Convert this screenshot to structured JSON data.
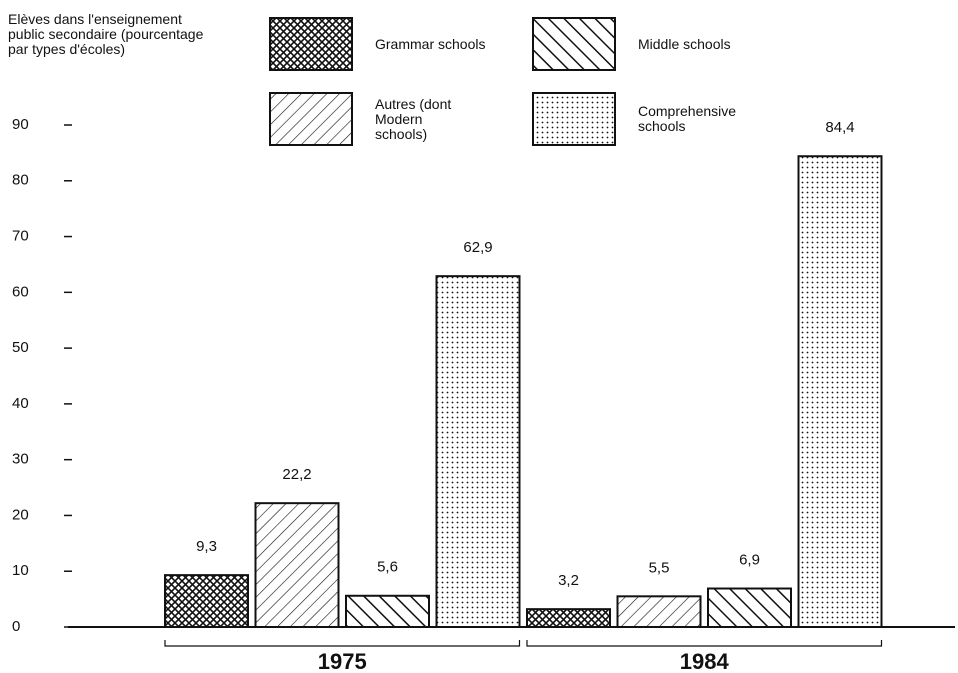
{
  "chart_data": {
    "type": "bar",
    "ylabel": "Elèves dans l'enseignement public secondaire (pourcentage par types d'écoles)",
    "categories": [
      "1975",
      "1984"
    ],
    "series": [
      {
        "name": "Grammar schools",
        "color": "#111111",
        "pattern": "crosshatch",
        "values": [
          9.3,
          3.2
        ],
        "value_labels": [
          "9,3",
          "3,2"
        ]
      },
      {
        "name": "Autres (dont Modern schools)",
        "color": "#111111",
        "pattern": "diagonal",
        "values": [
          22.2,
          5.5
        ],
        "value_labels": [
          "22,2",
          "5,5"
        ]
      },
      {
        "name": "Middle schools",
        "color": "#111111",
        "pattern": "backslash",
        "values": [
          5.6,
          6.9
        ],
        "value_labels": [
          "5,6",
          "6,9"
        ]
      },
      {
        "name": "Comprehensive schools",
        "color": "#111111",
        "pattern": "dots",
        "values": [
          62.9,
          84.4
        ],
        "value_labels": [
          "62,9",
          "84,4"
        ]
      }
    ],
    "ylim": [
      0,
      90
    ],
    "yticks": [
      0,
      10,
      20,
      30,
      40,
      50,
      60,
      70,
      80,
      90
    ]
  }
}
